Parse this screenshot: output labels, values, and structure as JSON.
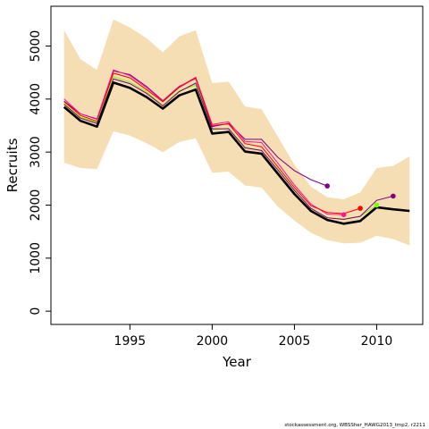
{
  "chart_data": {
    "type": "line",
    "xlabel": "Year",
    "ylabel": "Recruits",
    "xlim": [
      1990.2,
      2012.8
    ],
    "ylim": [
      -250,
      5750
    ],
    "x_ticks": [
      1995,
      2000,
      2005,
      2010
    ],
    "y_ticks": [
      0,
      1000,
      2000,
      3000,
      4000,
      5000
    ],
    "footer": "stockassessment.org, WBSSher_HAWG2013_tmp2, r2211",
    "colors": {
      "band": "#F5DEB3",
      "final": "#000000",
      "axis": "#000000"
    },
    "x": [
      1991,
      1992,
      1993,
      1994,
      1995,
      1996,
      1997,
      1998,
      1999,
      2000,
      2001,
      2002,
      2003,
      2004,
      2005,
      2006,
      2007,
      2008,
      2009,
      2010,
      2011,
      2012
    ],
    "band_upper": [
      5300,
      4750,
      4550,
      5500,
      5350,
      5150,
      4880,
      5180,
      5300,
      4300,
      4330,
      3860,
      3810,
      3290,
      2760,
      2350,
      2150,
      2110,
      2240,
      2700,
      2740,
      2920
    ],
    "band_lower": [
      2800,
      2700,
      2680,
      3390,
      3310,
      3170,
      3000,
      3190,
      3260,
      2610,
      2630,
      2370,
      2330,
      1970,
      1710,
      1480,
      1340,
      1280,
      1290,
      1420,
      1360,
      1240
    ],
    "retro": [
      {
        "color": "#800080",
        "end_year": 2007,
        "values": [
          3960,
          3720,
          3620,
          4530,
          4460,
          4240,
          3970,
          4240,
          4390,
          3480,
          3540,
          3240,
          3240,
          2900,
          2650,
          2480,
          2360
        ]
      },
      {
        "color": "#FF1493",
        "end_year": 2008,
        "values": [
          4000,
          3720,
          3630,
          4550,
          4440,
          4220,
          3960,
          4230,
          4410,
          3520,
          3570,
          3200,
          3180,
          2790,
          2380,
          2020,
          1830,
          1820
        ]
      },
      {
        "color": "#FF0000",
        "end_year": 2009,
        "values": [
          3950,
          3690,
          3580,
          4490,
          4400,
          4180,
          3950,
          4220,
          4400,
          3500,
          3530,
          3160,
          3100,
          2720,
          2330,
          1990,
          1860,
          1840,
          1940
        ]
      },
      {
        "color": "#7CFC00",
        "end_year": 2010,
        "values": [
          3920,
          3660,
          3560,
          4420,
          4320,
          4140,
          3880,
          4160,
          4260,
          3420,
          3450,
          3090,
          3030,
          2670,
          2290,
          1940,
          1760,
          1740,
          1790,
          2000
        ]
      },
      {
        "color": "#800080",
        "end_year": 2011,
        "values": [
          3900,
          3640,
          3540,
          4380,
          4290,
          4110,
          3870,
          4140,
          4300,
          3440,
          3440,
          3080,
          3030,
          2660,
          2280,
          1940,
          1760,
          1730,
          1790,
          2090,
          2170
        ]
      }
    ],
    "final": [
      3850,
      3590,
      3480,
      4310,
      4210,
      4040,
      3820,
      4070,
      4180,
      3350,
      3380,
      3010,
      2970,
      2590,
      2210,
      1890,
      1720,
      1650,
      1700,
      1960,
      1920,
      1890
    ]
  }
}
